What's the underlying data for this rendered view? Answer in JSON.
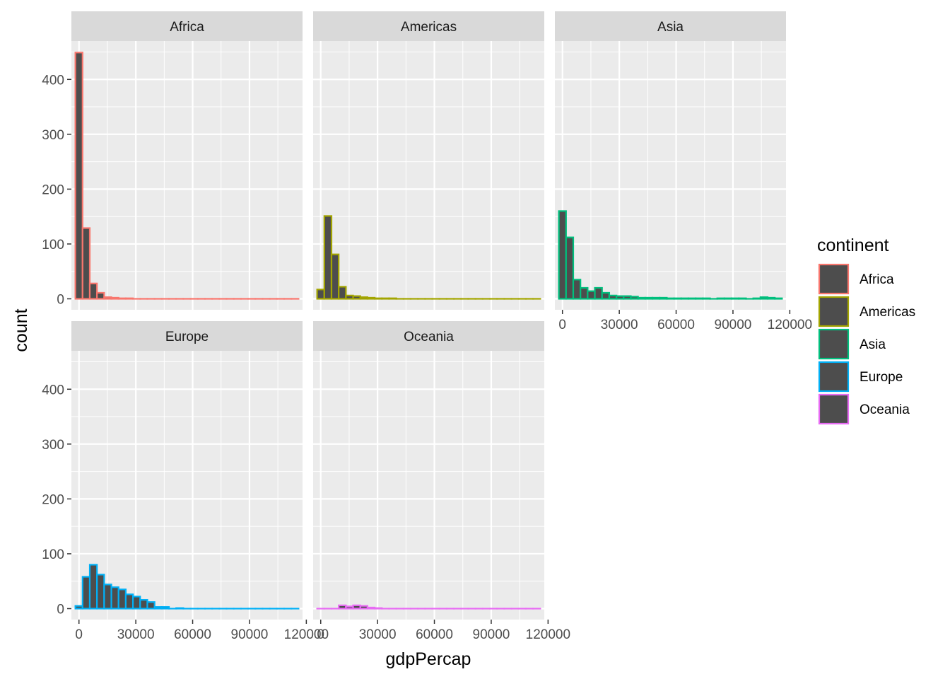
{
  "chart_data": {
    "type": "bar",
    "title": "",
    "xlabel": "gdpPercap",
    "ylabel": "count",
    "xlim": [
      -4000,
      118000
    ],
    "ylim": [
      -20,
      470
    ],
    "x_ticks": [
      0,
      30000,
      60000,
      90000,
      120000
    ],
    "x_tick_labels": [
      "0",
      "30000",
      "60000",
      "90000",
      "120000"
    ],
    "y_ticks": [
      0,
      100,
      200,
      300,
      400
    ],
    "y_tick_labels": [
      "0",
      "100",
      "200",
      "300",
      "400"
    ],
    "bin_width": 3800,
    "bin_starts": [
      -1900,
      1900,
      5700,
      9500,
      13300,
      17100,
      20900,
      24700,
      28500,
      32300,
      36100,
      39900,
      43700,
      47500,
      51300,
      55100,
      58900,
      62700,
      66500,
      70300,
      74100,
      77900,
      81700,
      85500,
      89300,
      93100,
      96900,
      100700,
      104500,
      108300,
      112100
    ],
    "bar_fill": "#4d4d4d",
    "grid": true,
    "legend": {
      "title": "continent",
      "position": "right"
    },
    "series": [
      {
        "name": "Africa",
        "color": "#F8766D",
        "values": [
          449,
          129,
          28,
          11,
          3,
          2,
          1,
          1,
          0,
          0,
          0,
          0,
          0,
          0,
          0,
          0,
          0,
          0,
          0,
          0,
          0,
          0,
          0,
          0,
          0,
          0,
          0,
          0,
          0,
          0,
          0
        ]
      },
      {
        "name": "Americas",
        "color": "#A3A500",
        "values": [
          17,
          151,
          81,
          22,
          6,
          5,
          3,
          2,
          1,
          1,
          1,
          0,
          0,
          0,
          0,
          0,
          0,
          0,
          0,
          0,
          0,
          0,
          0,
          0,
          0,
          0,
          0,
          0,
          0,
          0,
          0
        ]
      },
      {
        "name": "Asia",
        "color": "#00BF7D",
        "values": [
          160,
          112,
          35,
          20,
          14,
          20,
          11,
          6,
          5,
          5,
          4,
          2,
          2,
          2,
          2,
          1,
          1,
          1,
          1,
          1,
          1,
          0,
          1,
          1,
          1,
          1,
          0,
          1,
          3,
          2,
          1
        ]
      },
      {
        "name": "Europe",
        "color": "#00B0F6",
        "values": [
          5,
          58,
          80,
          62,
          44,
          39,
          35,
          26,
          22,
          16,
          12,
          3,
          3,
          0,
          1,
          0,
          0,
          0,
          0,
          0,
          0,
          0,
          0,
          0,
          0,
          0,
          0,
          0,
          0,
          0,
          0
        ]
      },
      {
        "name": "Oceania",
        "color": "#E76BF3",
        "values": [
          0,
          0,
          0,
          6,
          4,
          6,
          5,
          2,
          1,
          0,
          0,
          0,
          0,
          0,
          0,
          0,
          0,
          0,
          0,
          0,
          0,
          0,
          0,
          0,
          0,
          0,
          0,
          0,
          0,
          0,
          0
        ]
      }
    ]
  }
}
